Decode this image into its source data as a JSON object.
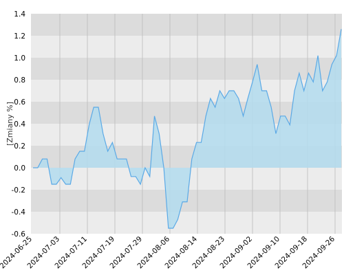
{
  "chart_data": {
    "type": "area",
    "title": "",
    "xlabel": "",
    "ylabel": "[Zmiany %]",
    "ylim": [
      -0.6,
      1.4
    ],
    "y_ticks": [
      "1.4",
      "1.2",
      "1.0",
      "0.8",
      "0.6",
      "0.4",
      "0.2",
      "0.0",
      "-0.2",
      "-0.4",
      "-0.6"
    ],
    "x_tick_labels": [
      "2024-06-25",
      "2024-07-03",
      "2024-07-11",
      "2024-07-19",
      "2024-07-29",
      "2024-08-06",
      "2024-08-14",
      "2024-08-23",
      "2024-09-02",
      "2024-09-10",
      "2024-09-18",
      "2024-09-26"
    ],
    "grid": true,
    "legend": "none",
    "colors": {
      "fill": "#b3dcee",
      "line": "#5aa9e6",
      "band_dark": "#dcdcdc",
      "band_light": "#ececec",
      "vgrid": "#bbbbbb"
    },
    "series": [
      {
        "values": [
          0.0,
          0.0,
          0.08,
          0.08,
          -0.15,
          -0.15,
          -0.09,
          -0.15,
          -0.15,
          0.08,
          0.15,
          0.15,
          0.39,
          0.55,
          0.55,
          0.31,
          0.15,
          0.23,
          0.08,
          0.08,
          0.08,
          -0.08,
          -0.08,
          -0.15,
          0.0,
          -0.08,
          0.47,
          0.31,
          0.0,
          -0.55,
          -0.55,
          -0.47,
          -0.31,
          -0.31,
          0.08,
          0.23,
          0.23,
          0.47,
          0.63,
          0.55,
          0.7,
          0.63,
          0.7,
          0.7,
          0.63,
          0.47,
          0.63,
          0.78,
          0.94,
          0.7,
          0.7,
          0.55,
          0.31,
          0.47,
          0.47,
          0.39,
          0.7,
          0.86,
          0.7,
          0.86,
          0.78,
          1.02,
          0.7,
          0.78,
          0.94,
          1.02,
          1.26
        ]
      }
    ]
  }
}
